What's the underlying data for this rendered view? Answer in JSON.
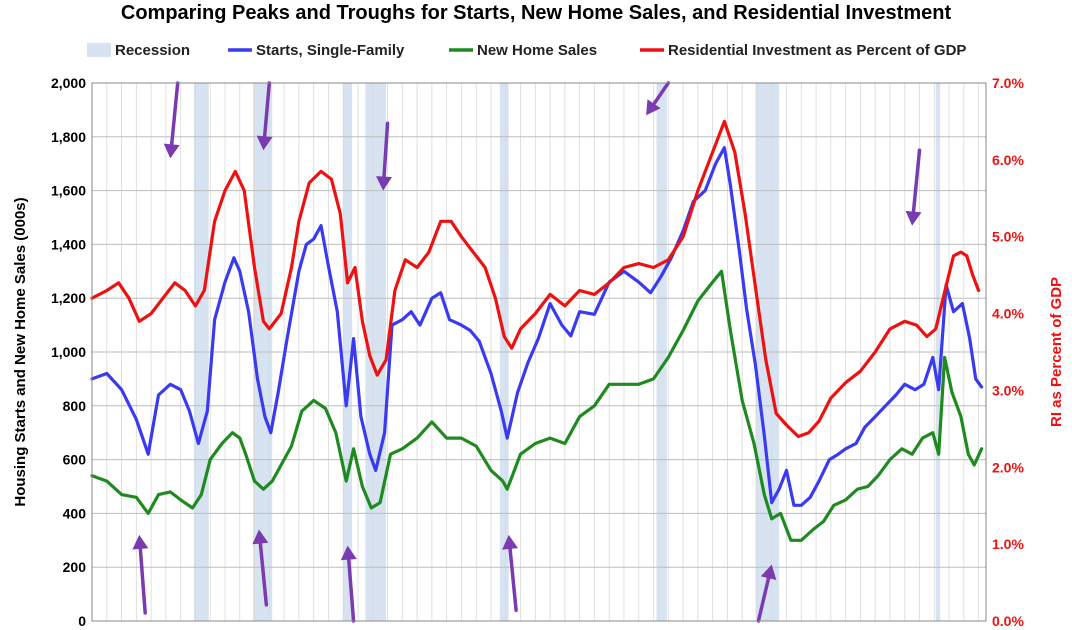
{
  "chart_data": {
    "type": "line",
    "title": "Comparing Peaks and Troughs for Starts, New Home Sales, and Residential Investment",
    "ylabel": "Housing Starts and New Home Sales (000s)",
    "y2label": "RI as Percent of GDP",
    "ylim": [
      0,
      2000
    ],
    "y2lim": [
      0.0,
      7.0
    ],
    "y_ticks": [
      "0",
      "200",
      "400",
      "600",
      "800",
      "1,000",
      "1,200",
      "1,400",
      "1,600",
      "1,800",
      "2,000"
    ],
    "y2_ticks": [
      "0.0%",
      "1.0%",
      "2.0%",
      "3.0%",
      "4.0%",
      "5.0%",
      "6.0%",
      "7.0%"
    ],
    "x_range": [
      1963.0,
      2023.5
    ],
    "grid": true,
    "legend_position": "top",
    "legend": [
      "Recession",
      "Starts, Single-Family",
      "New Home Sales",
      "Residential Investment as Percent of GDP"
    ],
    "colors": {
      "recession": "#d7e3f1",
      "starts": "#3a3af0",
      "sales": "#1f8a1f",
      "ri": "#ee1111",
      "arrows": "#7a3ab0",
      "right_axis": "#ee1111",
      "grid": "#d9d9d9"
    },
    "recessions": [
      [
        1969.9,
        1970.9
      ],
      [
        1973.9,
        1975.2
      ],
      [
        1980.0,
        1980.6
      ],
      [
        1981.5,
        1982.9
      ],
      [
        1990.6,
        1991.2
      ],
      [
        2001.2,
        2001.9
      ],
      [
        2007.9,
        2009.5
      ],
      [
        2020.1,
        2020.4
      ]
    ],
    "series": [
      {
        "name": "Starts, Single-Family",
        "axis": "left",
        "points": [
          [
            1963.0,
            900
          ],
          [
            1964.0,
            920
          ],
          [
            1965.0,
            860
          ],
          [
            1966.0,
            750
          ],
          [
            1966.8,
            620
          ],
          [
            1967.5,
            840
          ],
          [
            1968.3,
            880
          ],
          [
            1969.0,
            860
          ],
          [
            1969.6,
            780
          ],
          [
            1970.2,
            660
          ],
          [
            1970.8,
            780
          ],
          [
            1971.3,
            1120
          ],
          [
            1972.0,
            1260
          ],
          [
            1972.6,
            1350
          ],
          [
            1973.0,
            1300
          ],
          [
            1973.6,
            1150
          ],
          [
            1974.2,
            900
          ],
          [
            1974.7,
            760
          ],
          [
            1975.1,
            700
          ],
          [
            1975.6,
            850
          ],
          [
            1976.2,
            1050
          ],
          [
            1977.0,
            1300
          ],
          [
            1977.5,
            1400
          ],
          [
            1978.0,
            1420
          ],
          [
            1978.5,
            1470
          ],
          [
            1979.0,
            1320
          ],
          [
            1979.6,
            1150
          ],
          [
            1980.2,
            800
          ],
          [
            1980.7,
            1050
          ],
          [
            1981.2,
            760
          ],
          [
            1981.8,
            620
          ],
          [
            1982.2,
            560
          ],
          [
            1982.8,
            700
          ],
          [
            1983.3,
            1100
          ],
          [
            1984.0,
            1120
          ],
          [
            1984.6,
            1150
          ],
          [
            1985.2,
            1100
          ],
          [
            1986.0,
            1200
          ],
          [
            1986.6,
            1220
          ],
          [
            1987.2,
            1120
          ],
          [
            1988.0,
            1100
          ],
          [
            1988.6,
            1080
          ],
          [
            1989.2,
            1040
          ],
          [
            1990.0,
            920
          ],
          [
            1990.7,
            780
          ],
          [
            1991.1,
            680
          ],
          [
            1991.8,
            850
          ],
          [
            1992.5,
            960
          ],
          [
            1993.2,
            1050
          ],
          [
            1994.0,
            1180
          ],
          [
            1994.8,
            1100
          ],
          [
            1995.4,
            1060
          ],
          [
            1996.0,
            1150
          ],
          [
            1997.0,
            1140
          ],
          [
            1998.0,
            1260
          ],
          [
            1999.0,
            1300
          ],
          [
            2000.0,
            1260
          ],
          [
            2000.8,
            1220
          ],
          [
            2001.5,
            1280
          ],
          [
            2002.2,
            1350
          ],
          [
            2003.0,
            1450
          ],
          [
            2003.7,
            1560
          ],
          [
            2004.5,
            1600
          ],
          [
            2005.2,
            1700
          ],
          [
            2005.8,
            1760
          ],
          [
            2006.2,
            1620
          ],
          [
            2006.8,
            1380
          ],
          [
            2007.3,
            1160
          ],
          [
            2007.9,
            950
          ],
          [
            2008.5,
            690
          ],
          [
            2009.0,
            440
          ],
          [
            2009.5,
            490
          ],
          [
            2010.0,
            560
          ],
          [
            2010.5,
            430
          ],
          [
            2011.0,
            430
          ],
          [
            2011.6,
            460
          ],
          [
            2012.2,
            520
          ],
          [
            2012.9,
            600
          ],
          [
            2013.5,
            620
          ],
          [
            2014.0,
            640
          ],
          [
            2014.7,
            660
          ],
          [
            2015.3,
            720
          ],
          [
            2016.0,
            760
          ],
          [
            2016.7,
            800
          ],
          [
            2017.4,
            840
          ],
          [
            2018.0,
            880
          ],
          [
            2018.7,
            860
          ],
          [
            2019.3,
            880
          ],
          [
            2019.9,
            980
          ],
          [
            2020.3,
            860
          ],
          [
            2020.8,
            1250
          ],
          [
            2021.3,
            1150
          ],
          [
            2021.9,
            1180
          ],
          [
            2022.4,
            1050
          ],
          [
            2022.8,
            900
          ],
          [
            2023.2,
            870
          ]
        ]
      },
      {
        "name": "New Home Sales",
        "axis": "left",
        "points": [
          [
            1963.0,
            540
          ],
          [
            1964.0,
            520
          ],
          [
            1965.0,
            470
          ],
          [
            1966.0,
            460
          ],
          [
            1966.8,
            400
          ],
          [
            1967.5,
            470
          ],
          [
            1968.3,
            480
          ],
          [
            1969.0,
            450
          ],
          [
            1969.8,
            420
          ],
          [
            1970.4,
            470
          ],
          [
            1971.0,
            600
          ],
          [
            1971.8,
            660
          ],
          [
            1972.5,
            700
          ],
          [
            1973.0,
            680
          ],
          [
            1973.4,
            620
          ],
          [
            1974.0,
            520
          ],
          [
            1974.6,
            490
          ],
          [
            1975.2,
            520
          ],
          [
            1975.8,
            580
          ],
          [
            1976.5,
            650
          ],
          [
            1977.2,
            780
          ],
          [
            1978.0,
            820
          ],
          [
            1978.8,
            790
          ],
          [
            1979.5,
            700
          ],
          [
            1980.2,
            520
          ],
          [
            1980.7,
            640
          ],
          [
            1981.3,
            500
          ],
          [
            1981.9,
            420
          ],
          [
            1982.5,
            440
          ],
          [
            1983.2,
            620
          ],
          [
            1984.0,
            640
          ],
          [
            1985.0,
            680
          ],
          [
            1986.0,
            740
          ],
          [
            1987.0,
            680
          ],
          [
            1988.0,
            680
          ],
          [
            1989.0,
            650
          ],
          [
            1990.0,
            560
          ],
          [
            1990.8,
            520
          ],
          [
            1991.1,
            490
          ],
          [
            1992.0,
            620
          ],
          [
            1993.0,
            660
          ],
          [
            1994.0,
            680
          ],
          [
            1995.0,
            660
          ],
          [
            1996.0,
            760
          ],
          [
            1997.0,
            800
          ],
          [
            1998.0,
            880
          ],
          [
            1999.0,
            880
          ],
          [
            2000.0,
            880
          ],
          [
            2001.0,
            900
          ],
          [
            2002.0,
            980
          ],
          [
            2003.0,
            1080
          ],
          [
            2004.0,
            1190
          ],
          [
            2005.0,
            1260
          ],
          [
            2005.6,
            1300
          ],
          [
            2006.2,
            1080
          ],
          [
            2007.0,
            820
          ],
          [
            2007.8,
            660
          ],
          [
            2008.5,
            470
          ],
          [
            2009.0,
            380
          ],
          [
            2009.6,
            400
          ],
          [
            2010.3,
            300
          ],
          [
            2011.0,
            300
          ],
          [
            2011.8,
            340
          ],
          [
            2012.5,
            370
          ],
          [
            2013.2,
            430
          ],
          [
            2014.0,
            450
          ],
          [
            2014.8,
            490
          ],
          [
            2015.5,
            500
          ],
          [
            2016.2,
            540
          ],
          [
            2017.0,
            600
          ],
          [
            2017.8,
            640
          ],
          [
            2018.5,
            620
          ],
          [
            2019.2,
            680
          ],
          [
            2019.9,
            700
          ],
          [
            2020.3,
            620
          ],
          [
            2020.7,
            980
          ],
          [
            2021.2,
            850
          ],
          [
            2021.8,
            760
          ],
          [
            2022.3,
            620
          ],
          [
            2022.7,
            580
          ],
          [
            2023.2,
            640
          ]
        ]
      },
      {
        "name": "Residential Investment as Percent of GDP",
        "axis": "right",
        "points": [
          [
            1963.0,
            4.2
          ],
          [
            1964.0,
            4.3
          ],
          [
            1964.8,
            4.4
          ],
          [
            1965.5,
            4.2
          ],
          [
            1966.2,
            3.9
          ],
          [
            1967.0,
            4.0
          ],
          [
            1967.8,
            4.2
          ],
          [
            1968.6,
            4.4
          ],
          [
            1969.3,
            4.3
          ],
          [
            1970.0,
            4.1
          ],
          [
            1970.6,
            4.3
          ],
          [
            1971.3,
            5.2
          ],
          [
            1972.0,
            5.6
          ],
          [
            1972.7,
            5.85
          ],
          [
            1973.3,
            5.6
          ],
          [
            1974.0,
            4.6
          ],
          [
            1974.6,
            3.9
          ],
          [
            1975.0,
            3.8
          ],
          [
            1975.8,
            4.0
          ],
          [
            1976.5,
            4.6
          ],
          [
            1977.0,
            5.2
          ],
          [
            1977.7,
            5.7
          ],
          [
            1978.5,
            5.85
          ],
          [
            1979.2,
            5.75
          ],
          [
            1979.8,
            5.3
          ],
          [
            1980.3,
            4.4
          ],
          [
            1980.8,
            4.6
          ],
          [
            1981.3,
            3.9
          ],
          [
            1981.8,
            3.45
          ],
          [
            1982.3,
            3.2
          ],
          [
            1982.9,
            3.4
          ],
          [
            1983.5,
            4.3
          ],
          [
            1984.2,
            4.7
          ],
          [
            1985.0,
            4.6
          ],
          [
            1985.8,
            4.8
          ],
          [
            1986.6,
            5.2
          ],
          [
            1987.3,
            5.2
          ],
          [
            1988.0,
            5.0
          ],
          [
            1988.8,
            4.8
          ],
          [
            1989.6,
            4.6
          ],
          [
            1990.3,
            4.2
          ],
          [
            1990.9,
            3.7
          ],
          [
            1991.4,
            3.55
          ],
          [
            1992.0,
            3.8
          ],
          [
            1993.0,
            4.0
          ],
          [
            1994.0,
            4.25
          ],
          [
            1995.0,
            4.1
          ],
          [
            1996.0,
            4.3
          ],
          [
            1997.0,
            4.25
          ],
          [
            1998.0,
            4.4
          ],
          [
            1999.0,
            4.6
          ],
          [
            2000.0,
            4.65
          ],
          [
            2001.0,
            4.6
          ],
          [
            2002.0,
            4.7
          ],
          [
            2003.0,
            5.0
          ],
          [
            2004.0,
            5.6
          ],
          [
            2005.0,
            6.1
          ],
          [
            2005.8,
            6.5
          ],
          [
            2006.5,
            6.1
          ],
          [
            2007.2,
            5.3
          ],
          [
            2008.0,
            4.2
          ],
          [
            2008.6,
            3.4
          ],
          [
            2009.3,
            2.7
          ],
          [
            2010.0,
            2.55
          ],
          [
            2010.8,
            2.4
          ],
          [
            2011.5,
            2.45
          ],
          [
            2012.2,
            2.6
          ],
          [
            2013.0,
            2.9
          ],
          [
            2014.0,
            3.1
          ],
          [
            2015.0,
            3.25
          ],
          [
            2016.0,
            3.5
          ],
          [
            2017.0,
            3.8
          ],
          [
            2018.0,
            3.9
          ],
          [
            2018.8,
            3.85
          ],
          [
            2019.5,
            3.7
          ],
          [
            2020.1,
            3.8
          ],
          [
            2020.6,
            4.2
          ],
          [
            2021.3,
            4.75
          ],
          [
            2021.8,
            4.8
          ],
          [
            2022.2,
            4.75
          ],
          [
            2022.6,
            4.5
          ],
          [
            2023.0,
            4.3
          ]
        ]
      }
    ],
    "annotations": [
      {
        "kind": "arrow",
        "from": [
          1968.8,
          2000
        ],
        "to": [
          1968.3,
          1720
        ]
      },
      {
        "kind": "arrow",
        "from": [
          1975.0,
          2000
        ],
        "to": [
          1974.6,
          1750
        ]
      },
      {
        "kind": "arrow",
        "from": [
          1983.0,
          1850
        ],
        "to": [
          1982.7,
          1600
        ]
      },
      {
        "kind": "arrow",
        "from": [
          2002.0,
          2000
        ],
        "to": [
          2000.5,
          1880
        ]
      },
      {
        "kind": "arrow",
        "from": [
          2019.0,
          1750
        ],
        "to": [
          2018.5,
          1470
        ]
      },
      {
        "kind": "arrow",
        "from": [
          1966.6,
          30
        ],
        "to": [
          1966.2,
          320
        ]
      },
      {
        "kind": "arrow",
        "from": [
          1974.8,
          60
        ],
        "to": [
          1974.3,
          340
        ]
      },
      {
        "kind": "arrow",
        "from": [
          1980.7,
          0
        ],
        "to": [
          1980.3,
          280
        ]
      },
      {
        "kind": "arrow",
        "from": [
          1991.7,
          40
        ],
        "to": [
          1991.2,
          320
        ]
      },
      {
        "kind": "arrow",
        "from": [
          2008.1,
          0
        ],
        "to": [
          2009.0,
          210
        ]
      }
    ]
  }
}
